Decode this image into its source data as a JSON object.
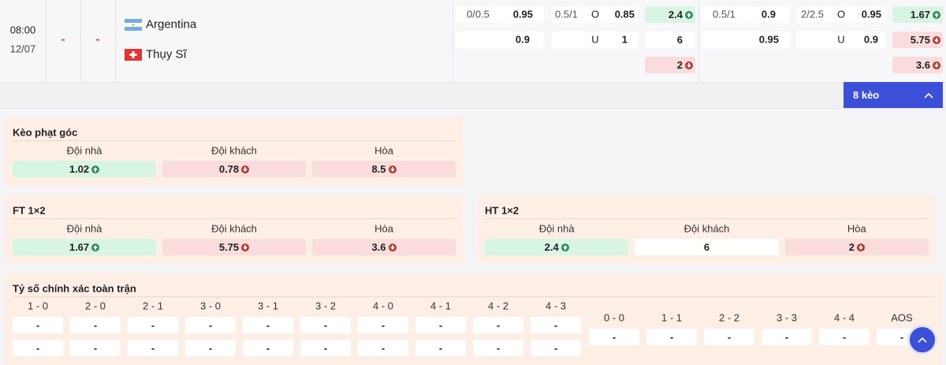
{
  "match": {
    "time": "08:00",
    "date": "12/07",
    "score_home": "-",
    "score_away": "-",
    "home": "Argentina",
    "away": "Thụy Sĩ"
  },
  "odds": {
    "row1": [
      "0/0.5",
      "0.95",
      "0.5/1",
      "O",
      "0.85",
      "2.4",
      "0.5/1",
      "0.9",
      "2/2.5",
      "O",
      "0.95",
      "1.67"
    ],
    "row2": [
      "0.9",
      "U",
      "1",
      "6",
      "0.95",
      "U",
      "0.9",
      "5.75"
    ],
    "row3": [
      "2",
      "3.6"
    ]
  },
  "more_button": "8 kèo",
  "corner": {
    "title": "Kèo phạt góc",
    "headers": [
      "Đội nhà",
      "Đội khách",
      "Hòa"
    ],
    "values": [
      "1.02",
      "0.78",
      "8.5"
    ]
  },
  "ft": {
    "title": "FT 1×2",
    "headers": [
      "Đội nhà",
      "Đội khách",
      "Hòa"
    ],
    "values": [
      "1.67",
      "5.75",
      "3.6"
    ]
  },
  "ht": {
    "title": "HT 1×2",
    "headers": [
      "Đội nhà",
      "Đội khách",
      "Hòa"
    ],
    "values": [
      "2.4",
      "6",
      "2"
    ]
  },
  "correct_score": {
    "title": "Tỷ số chính xác toàn trận",
    "group1": {
      "scores": [
        "1 - 0",
        "2 - 0",
        "2 - 1",
        "3 - 0",
        "3 - 1",
        "3 - 2",
        "4 - 0",
        "4 - 1",
        "4 - 2",
        "4 - 3"
      ],
      "row1": [
        "-",
        "-",
        "-",
        "-",
        "-",
        "-",
        "-",
        "-",
        "-",
        "-"
      ],
      "row2": [
        "-",
        "-",
        "-",
        "-",
        "-",
        "-",
        "-",
        "-",
        "-",
        "-"
      ]
    },
    "group2": {
      "scores": [
        "0 - 0",
        "1 - 1",
        "2 - 2",
        "3 - 3",
        "4 - 4",
        "AOS"
      ],
      "values": [
        "-",
        "-",
        "-",
        "-",
        "-",
        "-"
      ]
    }
  }
}
